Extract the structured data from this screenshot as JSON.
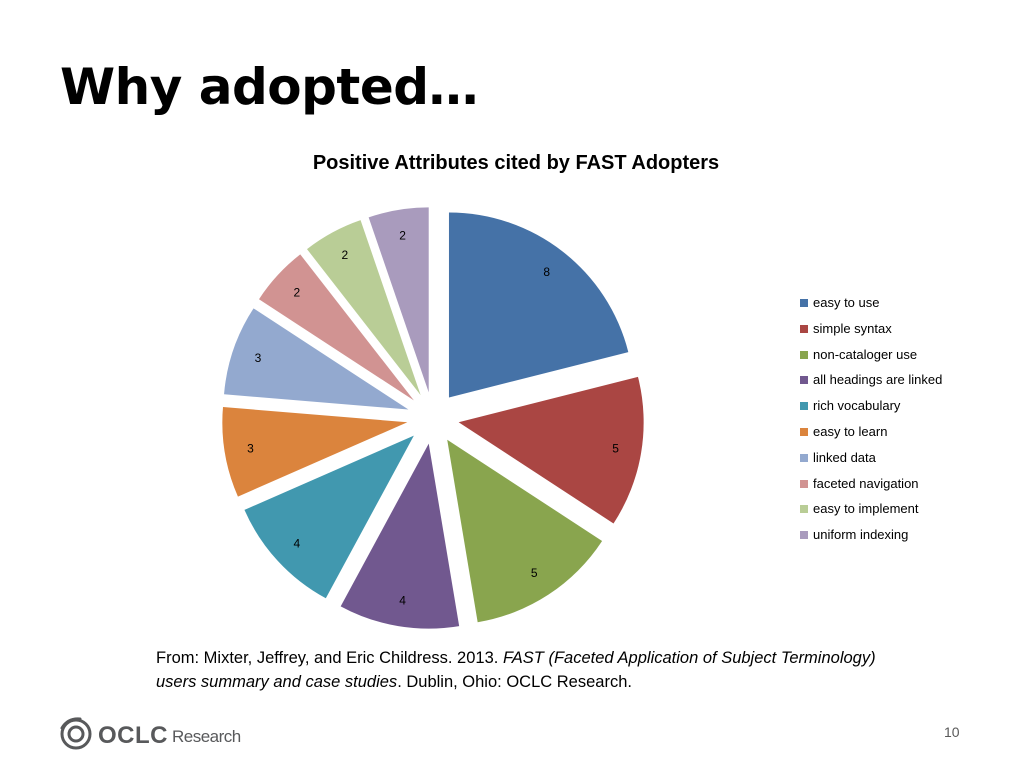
{
  "slide": {
    "title": "Why adopted…",
    "page_number": "10"
  },
  "citation": {
    "prefix": "From: Mixter, Jeffrey, and Eric Childress. 2013. ",
    "title_italic": "FAST (Faceted Application of Subject Terminology) users summary and case studies",
    "suffix": ". Dublin, Ohio: OCLC Research."
  },
  "logo": {
    "brand": "OCLC",
    "suffix": "Research"
  },
  "chart_data": {
    "type": "pie",
    "title": "Positive Attributes cited by FAST Adopters",
    "exploded": true,
    "data_labels": true,
    "legend_position": "right",
    "categories": [
      "easy to use",
      "simple syntax",
      "non-cataloger use",
      "all headings are linked",
      "rich vocabulary",
      "easy to learn",
      "linked data",
      "faceted navigation",
      "easy to implement",
      "uniform indexing"
    ],
    "values": [
      8,
      5,
      5,
      4,
      4,
      3,
      3,
      2,
      2,
      2
    ],
    "colors": [
      "#4572A7",
      "#AA4643",
      "#89A54E",
      "#71588F",
      "#4198AF",
      "#DB843D",
      "#93A9CF",
      "#D19392",
      "#B9CD96",
      "#A99BBD"
    ]
  }
}
